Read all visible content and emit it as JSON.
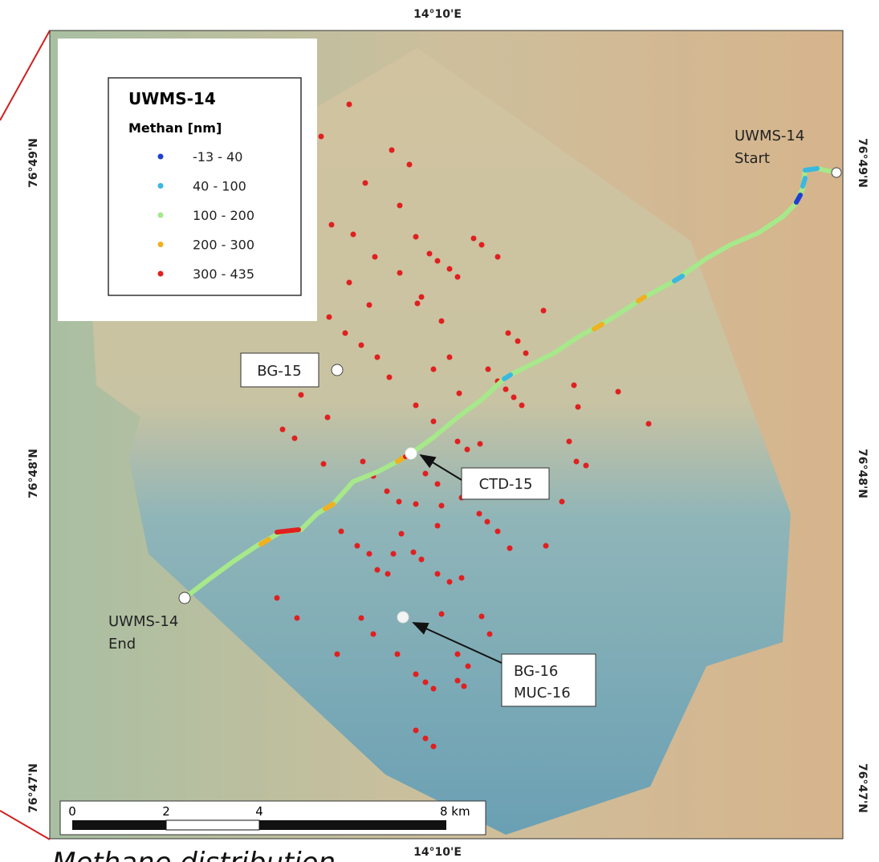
{
  "axes": {
    "top": "14°10'E",
    "bottom": "14°10'E",
    "left": [
      "76°49'N",
      "76°48'N",
      "76°47'N"
    ],
    "right": [
      "76°49'N",
      "76°48'N",
      "76°47'N"
    ]
  },
  "legend": {
    "title": "UWMS-14",
    "subtitle": "Methan [nm]",
    "items": [
      {
        "label": "-13 - 40",
        "color": "#1f3fd0"
      },
      {
        "label": "40 - 100",
        "color": "#3ab8e0"
      },
      {
        "label": "100 - 200",
        "color": "#a6e88a"
      },
      {
        "label": "200 - 300",
        "color": "#f0b020"
      },
      {
        "label": "300 - 435",
        "color": "#e02020"
      }
    ]
  },
  "labels": {
    "start": [
      "UWMS-14",
      "Start"
    ],
    "end": [
      "UWMS-14",
      "End"
    ],
    "bg15": "BG-15",
    "ctd15": "CTD-15",
    "bg16": [
      "BG-16",
      "MUC-16"
    ]
  },
  "scale_bar": {
    "ticks": [
      "0",
      "2",
      "4",
      "8 km"
    ]
  },
  "caption": "Methane distribution"
}
